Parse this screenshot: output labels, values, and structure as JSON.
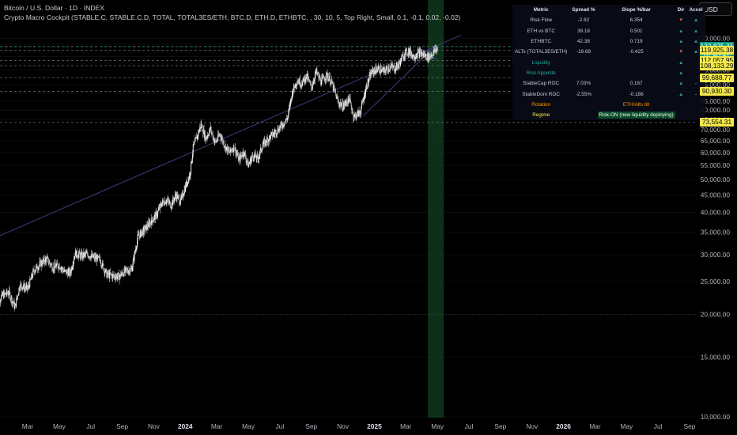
{
  "header": {
    "title": "Bitcoin / U.S. Dollar · 1D · INDEX",
    "subtitle": "Crypto Macro Cockpit (STABLE.C, STABLE.C.D, TOTAL, TOTAL3ES/ETH, BTC.D, ETH.D, ETHBTC, , 30, 10, 5, Top Right, Small, 0.1, -0.1, 0.02, -0.02)"
  },
  "currency_button": "USD",
  "colors": {
    "background": "#000000",
    "up": "#26a69a",
    "down": "#ef5350",
    "price_label": "#f5e94a",
    "current_price": "#089981",
    "highlight_band": "#0f3a1c",
    "trendline": "#3b3f7a",
    "candles": "#d8d8d8",
    "rotation": "#ff9800",
    "regime": "#ffeb3b"
  },
  "panel": {
    "headers": [
      "Metric",
      "Spread %",
      "Slope %/bar",
      "Dir",
      "Accel"
    ],
    "rows": [
      {
        "metric": "Risk Flow",
        "spread": "-2.82",
        "slope": "6.354",
        "dir": "▼",
        "accel": "▲",
        "dir_color": "#ef5350",
        "accel_color": "#26a69a",
        "metric_color": "#c9ccd4"
      },
      {
        "metric": "ETH vs BTC",
        "spread": "39.18",
        "slope": "0.501",
        "dir": "▲",
        "accel": "▲",
        "dir_color": "#26a69a",
        "accel_color": "#26a69a",
        "metric_color": "#c9ccd4"
      },
      {
        "metric": "ETHBTC",
        "spread": "42.38",
        "slope": "0.719",
        "dir": "▲",
        "accel": "▲",
        "dir_color": "#26a69a",
        "accel_color": "#26a69a",
        "metric_color": "#c9ccd4"
      },
      {
        "metric": "ALTs (TOTAL3ES/ETH)",
        "spread": "-16.68",
        "slope": "-0.425",
        "dir": "▼",
        "accel": "▲",
        "dir_color": "#ef5350",
        "accel_color": "#26a69a",
        "metric_color": "#c9ccd4"
      },
      {
        "metric": "Liquidity",
        "spread": "",
        "slope": "",
        "dir": "▲",
        "accel": "",
        "dir_color": "#26a69a",
        "accel_color": "#26a69a",
        "metric_color": "#26a69a"
      },
      {
        "metric": "Risk Appetite",
        "spread": "",
        "slope": "",
        "dir": "▲",
        "accel": "",
        "dir_color": "#26a69a",
        "accel_color": "#26a69a",
        "metric_color": "#26a69a"
      },
      {
        "metric": "StableCap ROC",
        "spread": "7.03%",
        "slope": "0.167",
        "dir": "▲",
        "accel": "-",
        "dir_color": "#26a69a",
        "accel_color": "#c9ccd4",
        "metric_color": "#c9ccd4"
      },
      {
        "metric": "StableDom ROC",
        "spread": "-2.55%",
        "slope": "-0.186",
        "dir": "▲",
        "accel": "-",
        "dir_color": "#26a69a",
        "accel_color": "#c9ccd4",
        "metric_color": "#c9ccd4"
      }
    ],
    "rotation": {
      "label": "Rotation",
      "value": "ETH/Alts tilt"
    },
    "regime": {
      "label": "Regime",
      "value": "Risk-ON (new liquidity deploying)"
    }
  },
  "chart_data": {
    "type": "candlestick",
    "title": "Bitcoin / U.S. Dollar · 1D · INDEX",
    "y_scale": "log",
    "ylim": [
      10000,
      150000
    ],
    "y_ticks": [
      10000,
      15000,
      20000,
      25000,
      30000,
      35000,
      40000,
      45000,
      50000,
      55000,
      60000,
      65000,
      70000,
      75000,
      80000,
      85000,
      90000,
      95000,
      100000,
      105000,
      110000,
      115000,
      120000,
      125000,
      130000
    ],
    "y_tick_labels": [
      "10,000.00",
      "15,000.00",
      "20,000.00",
      "25,000.00",
      "30,000.00",
      "35,000.00",
      "40,000.00",
      "45,000.00",
      "50,000.00",
      "55,000.00",
      "60,000.00",
      "65,000.00",
      "70,000.00",
      "75,000.00",
      "80,000.00",
      "85,000.00",
      "90,000.00",
      "95,000.00",
      "100,000.00",
      "105,000.00",
      "110,000.00",
      "115,000.00",
      "120,000.00",
      "125,000.00",
      "130,000.00"
    ],
    "x_ticks": [
      "Mar",
      "May",
      "Jul",
      "Sep",
      "Nov",
      "2024",
      "Mar",
      "May",
      "Jul",
      "Sep",
      "Nov",
      "2025",
      "Mar",
      "May",
      "Jul",
      "Sep",
      "Nov",
      "2026",
      "Mar",
      "May",
      "Jul",
      "Sep"
    ],
    "x_tick_months": [
      2,
      4,
      6,
      8,
      10,
      12,
      14,
      16,
      18,
      20,
      22,
      24,
      26,
      28,
      30,
      32,
      34,
      36,
      38,
      40,
      42,
      44
    ],
    "x_tick_bold": [
      "2024",
      "2025",
      "2026"
    ],
    "price_path": [
      [
        0,
        21500
      ],
      [
        0.4,
        22800
      ],
      [
        0.8,
        23200
      ],
      [
        1.2,
        21000
      ],
      [
        1.5,
        24500
      ],
      [
        2.0,
        23800
      ],
      [
        2.4,
        27000
      ],
      [
        2.8,
        28200
      ],
      [
        3.2,
        29200
      ],
      [
        3.6,
        27500
      ],
      [
        4.0,
        28000
      ],
      [
        4.3,
        26800
      ],
      [
        4.7,
        26500
      ],
      [
        5.0,
        30300
      ],
      [
        5.4,
        29800
      ],
      [
        5.8,
        30100
      ],
      [
        6.2,
        29400
      ],
      [
        6.6,
        29000
      ],
      [
        7.0,
        26300
      ],
      [
        7.4,
        26000
      ],
      [
        7.8,
        25900
      ],
      [
        8.2,
        26900
      ],
      [
        8.6,
        27200
      ],
      [
        9.0,
        34000
      ],
      [
        9.4,
        35500
      ],
      [
        9.8,
        37500
      ],
      [
        10.2,
        39500
      ],
      [
        10.5,
        42500
      ],
      [
        10.8,
        43500
      ],
      [
        11.1,
        42000
      ],
      [
        11.4,
        45000
      ],
      [
        11.7,
        43000
      ],
      [
        12.0,
        47500
      ],
      [
        12.3,
        52000
      ],
      [
        12.5,
        62000
      ],
      [
        12.8,
        68000
      ],
      [
        13.0,
        72500
      ],
      [
        13.3,
        66000
      ],
      [
        13.6,
        70500
      ],
      [
        13.9,
        64000
      ],
      [
        14.2,
        68000
      ],
      [
        14.5,
        63000
      ],
      [
        14.8,
        60000
      ],
      [
        15.1,
        62500
      ],
      [
        15.4,
        57000
      ],
      [
        15.7,
        60500
      ],
      [
        16.0,
        55000
      ],
      [
        16.3,
        59000
      ],
      [
        16.6,
        57500
      ],
      [
        16.9,
        63000
      ],
      [
        17.2,
        65500
      ],
      [
        17.5,
        67500
      ],
      [
        17.8,
        69500
      ],
      [
        18.1,
        72000
      ],
      [
        18.5,
        76000
      ],
      [
        18.8,
        91000
      ],
      [
        19.1,
        98000
      ],
      [
        19.4,
        96000
      ],
      [
        19.7,
        101000
      ],
      [
        20.0,
        93000
      ],
      [
        20.3,
        104000
      ],
      [
        20.6,
        97000
      ],
      [
        21.0,
        101500
      ],
      [
        21.3,
        96000
      ],
      [
        21.7,
        84500
      ],
      [
        22.0,
        82000
      ],
      [
        22.4,
        86500
      ],
      [
        22.7,
        76500
      ],
      [
        23.1,
        79000
      ],
      [
        23.5,
        94000
      ],
      [
        23.8,
        103000
      ],
      [
        24.2,
        106000
      ],
      [
        24.6,
        104000
      ],
      [
        25.0,
        107500
      ],
      [
        25.3,
        106000
      ],
      [
        25.6,
        110000
      ],
      [
        25.9,
        117500
      ],
      [
        26.2,
        119500
      ],
      [
        26.5,
        115000
      ],
      [
        26.8,
        118000
      ],
      [
        27.1,
        116500
      ],
      [
        27.4,
        114500
      ],
      [
        27.7,
        117500
      ],
      [
        28.0,
        122000
      ]
    ],
    "price_lines": [
      {
        "value": 123168.2,
        "label": "123,168.20"
      },
      {
        "value": 122875.31,
        "label": "122,875.31",
        "countdown": "02:43:41",
        "current": true
      },
      {
        "value": 119925.38,
        "label": "119,925.38"
      },
      {
        "value": 112057.95,
        "label": "112,057.95"
      },
      {
        "value": 108133.29,
        "label": "108,133.29"
      },
      {
        "value": 99688.77,
        "label": "99,688.77"
      },
      {
        "value": 90930.3,
        "label": "90,930.30"
      },
      {
        "value": 73554.31,
        "label": "73,554.31"
      }
    ],
    "highlight_band": {
      "x_start": 27.4,
      "x_end": 28.4
    },
    "trendlines": [
      {
        "from": [
          -1.5,
          31500
        ],
        "to": [
          29.5,
          133000
        ]
      },
      {
        "from": [
          23.3,
          77000
        ],
        "to": [
          27.9,
          124000
        ]
      },
      {
        "from": [
          27.3,
          119000
        ],
        "to": [
          28.0,
          112000
        ]
      }
    ]
  }
}
